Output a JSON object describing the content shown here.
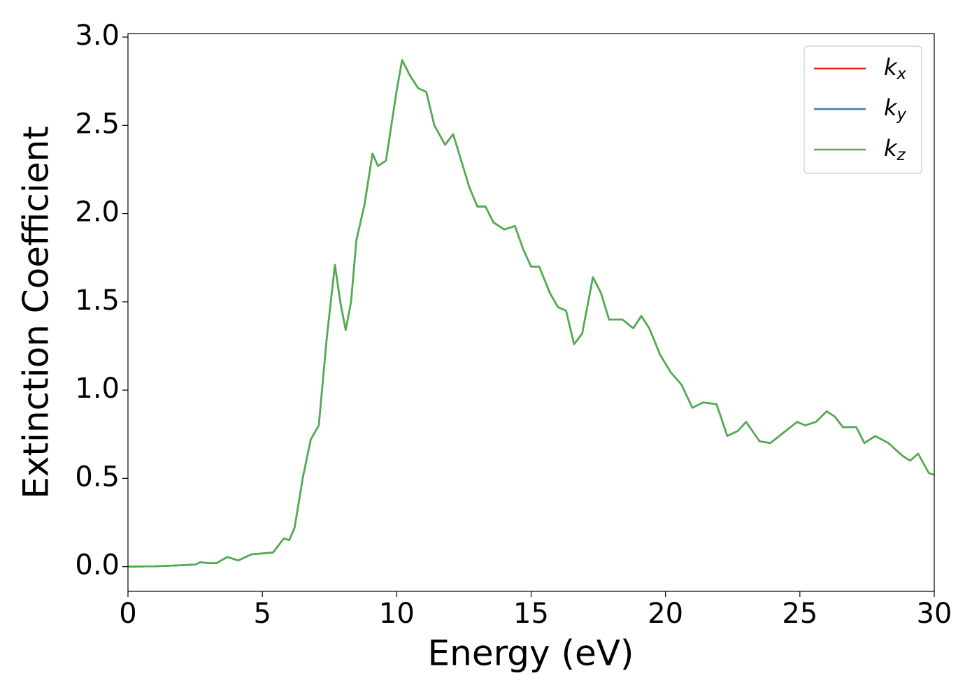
{
  "chart_data": {
    "type": "line",
    "x_label": "Energy (eV)",
    "y_label": "Extinction Coefficient",
    "xlim": [
      0,
      30
    ],
    "ylim": [
      -0.14,
      3.02
    ],
    "xticks": [
      0,
      5,
      10,
      15,
      20,
      25,
      30
    ],
    "yticks": [
      {
        "value": 0,
        "label": "0.0"
      },
      0.5,
      {
        "value": 1,
        "label": "1.0"
      },
      1.5,
      {
        "value": 2,
        "label": "2.0"
      },
      2.5,
      {
        "value": 3,
        "label": "3.0"
      }
    ],
    "legend": "upper right",
    "grid": false,
    "x": [
      0,
      1,
      2,
      2.5,
      2.7,
      3.0,
      3.3,
      3.7,
      4.1,
      4.6,
      5.0,
      5.4,
      5.8,
      6.0,
      6.2,
      6.5,
      6.8,
      7.1,
      7.4,
      7.7,
      7.9,
      8.1,
      8.3,
      8.5,
      8.8,
      9.1,
      9.3,
      9.6,
      10.0,
      10.2,
      10.5,
      10.8,
      11.1,
      11.4,
      11.8,
      12.1,
      12.4,
      12.7,
      13.0,
      13.3,
      13.6,
      14.0,
      14.4,
      14.7,
      15.0,
      15.3,
      15.7,
      16.0,
      16.3,
      16.6,
      16.9,
      17.3,
      17.6,
      17.9,
      18.4,
      18.8,
      19.1,
      19.4,
      19.8,
      20.2,
      20.6,
      21.0,
      21.4,
      21.9,
      22.3,
      22.7,
      23.0,
      23.5,
      23.9,
      24.4,
      24.9,
      25.2,
      25.6,
      26.0,
      26.3,
      26.6,
      27.1,
      27.4,
      27.8,
      28.3,
      28.8,
      29.1,
      29.4,
      29.8,
      30
    ],
    "series": [
      {
        "name": "kx",
        "color": "#e41a1c",
        "values": [
          0,
          0.002,
          0.008,
          0.012,
          0.025,
          0.02,
          0.02,
          0.055,
          0.035,
          0.07,
          0.075,
          0.08,
          0.16,
          0.15,
          0.22,
          0.5,
          0.72,
          0.8,
          1.3,
          1.71,
          1.5,
          1.34,
          1.5,
          1.85,
          2.05,
          2.34,
          2.27,
          2.3,
          2.7,
          2.87,
          2.78,
          2.71,
          2.69,
          2.5,
          2.39,
          2.45,
          2.3,
          2.15,
          2.04,
          2.04,
          1.95,
          1.91,
          1.93,
          1.8,
          1.7,
          1.7,
          1.55,
          1.47,
          1.45,
          1.26,
          1.32,
          1.64,
          1.55,
          1.4,
          1.4,
          1.35,
          1.42,
          1.35,
          1.2,
          1.1,
          1.03,
          0.9,
          0.93,
          0.92,
          0.74,
          0.77,
          0.82,
          0.71,
          0.7,
          0.76,
          0.82,
          0.8,
          0.82,
          0.88,
          0.85,
          0.79,
          0.79,
          0.7,
          0.74,
          0.7,
          0.63,
          0.6,
          0.64,
          0.53,
          0.52
        ]
      },
      {
        "name": "ky",
        "color": "#377eb8",
        "values": [
          0,
          0.002,
          0.008,
          0.012,
          0.025,
          0.02,
          0.02,
          0.055,
          0.035,
          0.07,
          0.075,
          0.08,
          0.16,
          0.15,
          0.22,
          0.5,
          0.72,
          0.8,
          1.3,
          1.71,
          1.5,
          1.34,
          1.5,
          1.85,
          2.05,
          2.34,
          2.27,
          2.3,
          2.7,
          2.87,
          2.78,
          2.71,
          2.69,
          2.5,
          2.39,
          2.45,
          2.3,
          2.15,
          2.04,
          2.04,
          1.95,
          1.91,
          1.93,
          1.8,
          1.7,
          1.7,
          1.55,
          1.47,
          1.45,
          1.26,
          1.32,
          1.64,
          1.55,
          1.4,
          1.4,
          1.35,
          1.42,
          1.35,
          1.2,
          1.1,
          1.03,
          0.9,
          0.93,
          0.92,
          0.74,
          0.77,
          0.82,
          0.71,
          0.7,
          0.76,
          0.82,
          0.8,
          0.82,
          0.88,
          0.85,
          0.79,
          0.79,
          0.7,
          0.74,
          0.7,
          0.63,
          0.6,
          0.64,
          0.53,
          0.52
        ]
      },
      {
        "name": "kz",
        "color": "#4daf4a",
        "values": [
          0,
          0.002,
          0.008,
          0.012,
          0.025,
          0.02,
          0.02,
          0.055,
          0.035,
          0.07,
          0.075,
          0.08,
          0.16,
          0.15,
          0.22,
          0.5,
          0.72,
          0.8,
          1.3,
          1.71,
          1.5,
          1.34,
          1.5,
          1.85,
          2.05,
          2.34,
          2.27,
          2.3,
          2.7,
          2.87,
          2.78,
          2.71,
          2.69,
          2.5,
          2.39,
          2.45,
          2.3,
          2.15,
          2.04,
          2.04,
          1.95,
          1.91,
          1.93,
          1.8,
          1.7,
          1.7,
          1.55,
          1.47,
          1.45,
          1.26,
          1.32,
          1.64,
          1.55,
          1.4,
          1.4,
          1.35,
          1.42,
          1.35,
          1.2,
          1.1,
          1.03,
          0.9,
          0.93,
          0.92,
          0.74,
          0.77,
          0.82,
          0.71,
          0.7,
          0.76,
          0.82,
          0.8,
          0.82,
          0.88,
          0.85,
          0.79,
          0.79,
          0.7,
          0.74,
          0.7,
          0.63,
          0.6,
          0.64,
          0.53,
          0.52
        ]
      }
    ]
  }
}
